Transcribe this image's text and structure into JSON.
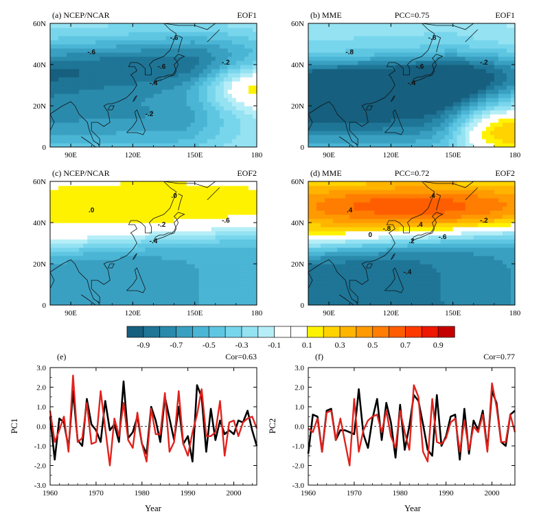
{
  "chart_data": [
    {
      "type": "heatmap",
      "panel_label": "(a) NCEP/NCAR",
      "mode_label": "EOF1",
      "pcc": "",
      "x_ticks": [
        "90E",
        "120E",
        "150E",
        "180"
      ],
      "y_ticks": [
        "0",
        "20N",
        "40N",
        "60N"
      ],
      "xlim": [
        80,
        180
      ],
      "ylim": [
        0,
        60
      ],
      "contour_labels": [
        "-.6",
        "-.6",
        "-.6",
        "-.4",
        "-.2",
        "-.2"
      ],
      "pattern": {
        "band_lat": 40,
        "band_amp": -0.62,
        "band_width": 14,
        "south_amp": -0.45,
        "warm_center": [
          178,
          30
        ],
        "warm_amp": 0.12
      }
    },
    {
      "type": "heatmap",
      "panel_label": "(b) MME",
      "mode_label": "EOF1",
      "pcc": "PCC=0.75",
      "x_ticks": [
        "90E",
        "120E",
        "150E",
        "180"
      ],
      "y_ticks": [
        "0",
        "20N",
        "40N",
        "60N"
      ],
      "xlim": [
        80,
        180
      ],
      "ylim": [
        0,
        60
      ],
      "contour_labels": [
        "-.8",
        "-.8",
        "-.6",
        "-.4",
        "-.2"
      ],
      "pattern": {
        "band_lat": 32,
        "band_amp": -0.85,
        "band_width": 12,
        "south_amp": -0.55,
        "warm_center": [
          172,
          8
        ],
        "warm_amp": 0.28
      }
    },
    {
      "type": "heatmap",
      "panel_label": "(c) NCEP/NCAR",
      "mode_label": "EOF2",
      "pcc": "",
      "x_ticks": [
        "90E",
        "120E",
        "150E",
        "180"
      ],
      "y_ticks": [
        "0",
        "20N",
        "40N",
        "60N"
      ],
      "xlim": [
        80,
        180
      ],
      "ylim": [
        0,
        60
      ],
      "contour_labels": [
        ".0",
        ".0",
        "-.2",
        "-.4",
        "-.6"
      ],
      "pattern": {
        "north_amp": 0.12,
        "boundary_lat": 36,
        "south_amp": -0.62
      }
    },
    {
      "type": "heatmap",
      "panel_label": "(d) MME",
      "mode_label": "EOF2",
      "pcc": "PCC=0.72",
      "x_ticks": [
        "90E",
        "120E",
        "150E",
        "180"
      ],
      "y_ticks": [
        "0",
        "20N",
        "40N",
        "60N"
      ],
      "xlim": [
        80,
        180
      ],
      "ylim": [
        0,
        60
      ],
      "contour_labels": [
        ".4",
        ".4",
        ".4",
        ".2",
        "-.2",
        "-.4",
        "-.6",
        "-.8",
        "0"
      ],
      "pattern": {
        "north_amp": 0.62,
        "boundary_lat": 36,
        "south_amp": -0.82
      }
    },
    {
      "type": "line",
      "panel_label": "(e)",
      "cor": "Cor=0.63",
      "xlabel": "Year",
      "ylabel": "PC1",
      "xlim": [
        1960,
        2005
      ],
      "ylim": [
        -3.0,
        3.0
      ],
      "x_ticks": [
        "1960",
        "1970",
        "1980",
        "1990",
        "2000"
      ],
      "y_ticks": [
        "-3.0",
        "-2.0",
        "-1.0",
        "0.0",
        "1.0",
        "2.0",
        "3.0"
      ],
      "series": [
        {
          "color": "#000000",
          "values": [
            0.5,
            -1.7,
            0.4,
            0.2,
            -1.1,
            1.8,
            -0.7,
            -1.0,
            1.4,
            0.1,
            -0.2,
            -0.8,
            1.3,
            -0.2,
            0.1,
            -0.8,
            2.3,
            -0.6,
            -0.3,
            0.5,
            -0.9,
            -1.4,
            1.0,
            0.3,
            -0.8,
            1.5,
            0.4,
            -0.7,
            1.0,
            -0.9,
            -0.5,
            -1.8,
            2.1,
            1.5,
            -1.3,
            0.9,
            -0.7,
            0.3,
            -0.4,
            -0.2,
            -0.4,
            0.3,
            0.2,
            0.8,
            -0.2,
            -1.0
          ]
        },
        {
          "color": "#e0221c",
          "values": [
            0.8,
            -0.8,
            -0.2,
            0.5,
            -1.3,
            2.6,
            -0.8,
            -0.6,
            1.2,
            -0.9,
            -0.8,
            1.8,
            -0.1,
            -2.0,
            0.4,
            -0.5,
            1.2,
            -0.7,
            -1.1,
            0.7,
            -0.9,
            -1.8,
            0.9,
            -0.4,
            -0.4,
            1.7,
            -1.3,
            -0.8,
            1.8,
            -0.9,
            -1.5,
            -0.3,
            0.6,
            1.9,
            -0.5,
            -0.5,
            -0.3,
            1.3,
            -1.5,
            0.2,
            0.3,
            -0.5,
            0.2,
            0.4,
            0.5,
            -0.1
          ]
        }
      ]
    },
    {
      "type": "line",
      "panel_label": "(f)",
      "cor": "Cor=0.77",
      "xlabel": "Year",
      "ylabel": "PC2",
      "xlim": [
        1960,
        2005
      ],
      "ylim": [
        -3.0,
        3.0
      ],
      "x_ticks": [
        "1960",
        "1970",
        "1980",
        "1990",
        "2000"
      ],
      "y_ticks": [
        "-3.0",
        "-2.0",
        "-1.0",
        "0.0",
        "1.0",
        "2.0",
        "3.0"
      ],
      "series": [
        {
          "color": "#000000",
          "values": [
            -1.4,
            0.6,
            0.5,
            -1.3,
            0.8,
            0.9,
            -0.7,
            -0.2,
            -0.2,
            -0.3,
            -0.4,
            1.9,
            -0.4,
            -1.1,
            0.4,
            1.4,
            -0.7,
            1.2,
            0.2,
            -1.6,
            1.1,
            -1.2,
            0.0,
            1.6,
            1.3,
            0.1,
            -1.2,
            -1.5,
            1.6,
            -1.0,
            -0.5,
            0.5,
            0.6,
            -1.7,
            0.9,
            -1.4,
            0.3,
            -0.2,
            0.8,
            -1.2,
            1.8,
            1.2,
            -0.8,
            -1.0,
            0.6,
            0.8
          ]
        },
        {
          "color": "#e0221c",
          "values": [
            -0.1,
            -0.3,
            0.4,
            -1.3,
            0.7,
            0.8,
            -0.7,
            0.4,
            -0.8,
            -2.0,
            1.4,
            -1.3,
            -0.2,
            0.3,
            0.5,
            0.6,
            -0.3,
            0.8,
            -0.5,
            -1.1,
            0.8,
            -0.3,
            -1.2,
            2.1,
            1.5,
            -1.3,
            -1.8,
            1.4,
            -0.8,
            -0.9,
            -0.6,
            0.2,
            0.4,
            -1.3,
            0.3,
            -1.2,
            0.0,
            -0.3,
            0.6,
            -1.3,
            2.2,
            1.0,
            -0.8,
            -0.8,
            0.6,
            -0.3
          ]
        }
      ]
    }
  ],
  "colorbar": {
    "labels": [
      "-0.9",
      "-0.7",
      "-0.5",
      "-0.3",
      "-0.1",
      "0.1",
      "0.3",
      "0.5",
      "0.7",
      "0.9"
    ],
    "colors": [
      "#165f7e",
      "#1e7596",
      "#2a8aac",
      "#3aa0c2",
      "#4ab5d4",
      "#5fc6e2",
      "#78d6ec",
      "#94e2f2",
      "#b6eef7",
      "#ffffff",
      "#ffffff",
      "#fff200",
      "#ffd300",
      "#ffb400",
      "#ff9a00",
      "#ff7d00",
      "#ff5e00",
      "#ff3a00",
      "#ee1700",
      "#c40000"
    ]
  }
}
